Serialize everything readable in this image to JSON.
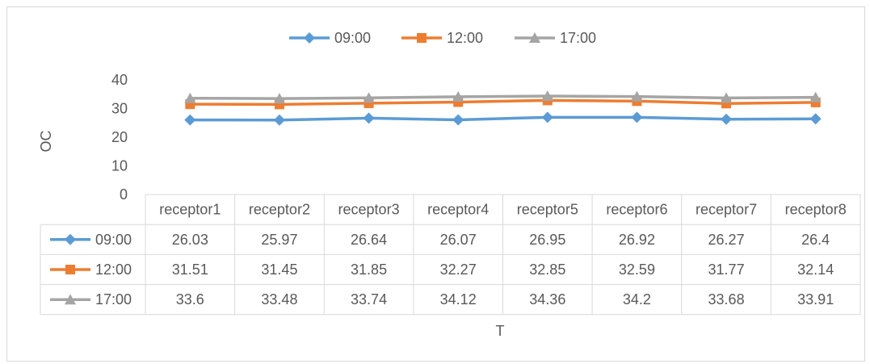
{
  "chart_data": {
    "type": "line",
    "title": "",
    "xlabel": "T",
    "ylabel": "OC",
    "ylim": [
      0,
      40
    ],
    "yticks": [
      "0",
      "10",
      "20",
      "30",
      "40"
    ],
    "grid": false,
    "legend_position": "top",
    "data_table": true,
    "categories": [
      "receptor1",
      "receptor2",
      "receptor3",
      "receptor4",
      "receptor5",
      "receptor6",
      "receptor7",
      "receptor8"
    ],
    "series": [
      {
        "name": "09:00",
        "color": "#5B9BD5",
        "marker": "diamond",
        "values": [
          26.03,
          25.97,
          26.64,
          26.07,
          26.95,
          26.92,
          26.27,
          26.4
        ],
        "labels": [
          "26.03",
          "25.97",
          "26.64",
          "26.07",
          "26.95",
          "26.92",
          "26.27",
          "26.4"
        ]
      },
      {
        "name": "12:00",
        "color": "#ED7D31",
        "marker": "square",
        "values": [
          31.51,
          31.45,
          31.85,
          32.27,
          32.85,
          32.59,
          31.77,
          32.14
        ],
        "labels": [
          "31.51",
          "31.45",
          "31.85",
          "32.27",
          "32.85",
          "32.59",
          "31.77",
          "32.14"
        ]
      },
      {
        "name": "17:00",
        "color": "#A5A5A5",
        "marker": "triangle",
        "values": [
          33.6,
          33.48,
          33.74,
          34.12,
          34.36,
          34.2,
          33.68,
          33.91
        ],
        "labels": [
          "33.6",
          "33.48",
          "33.74",
          "34.12",
          "34.36",
          "34.2",
          "33.68",
          "33.91"
        ]
      }
    ]
  }
}
